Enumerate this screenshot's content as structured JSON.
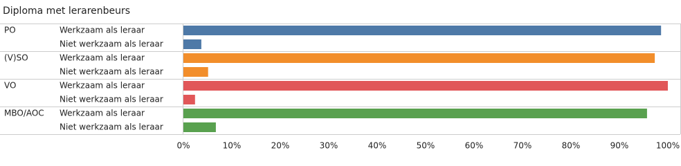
{
  "chart_data": {
    "type": "grouped-hbar",
    "title": "Diploma met lerarenbeurs",
    "categories": [
      "Werkzaam als leraar",
      "Niet werkzaam als leraar"
    ],
    "series": [
      {
        "name": "PO",
        "color": "#4e79a7",
        "values": [
          98.6,
          3.7
        ]
      },
      {
        "name": "(V)SO",
        "color": "#f28e2b",
        "values": [
          97.3,
          5.1
        ]
      },
      {
        "name": "VO",
        "color": "#e15759",
        "values": [
          100,
          2.4
        ]
      },
      {
        "name": "MBO/AOC",
        "color": "#59a14f",
        "values": [
          95.7,
          6.7
        ]
      }
    ],
    "xlim": [
      0,
      100
    ],
    "xticks": [
      {
        "value": 0,
        "label": "0%"
      },
      {
        "value": 10,
        "label": "10%"
      },
      {
        "value": 20,
        "label": "20%"
      },
      {
        "value": 30,
        "label": "30%"
      },
      {
        "value": 40,
        "label": "40%"
      },
      {
        "value": 50,
        "label": "50%"
      },
      {
        "value": 60,
        "label": "60%"
      },
      {
        "value": 70,
        "label": "70%"
      },
      {
        "value": 80,
        "label": "80%"
      },
      {
        "value": 90,
        "label": "90%"
      },
      {
        "value": 100,
        "label": "100%"
      }
    ],
    "grid": false
  }
}
